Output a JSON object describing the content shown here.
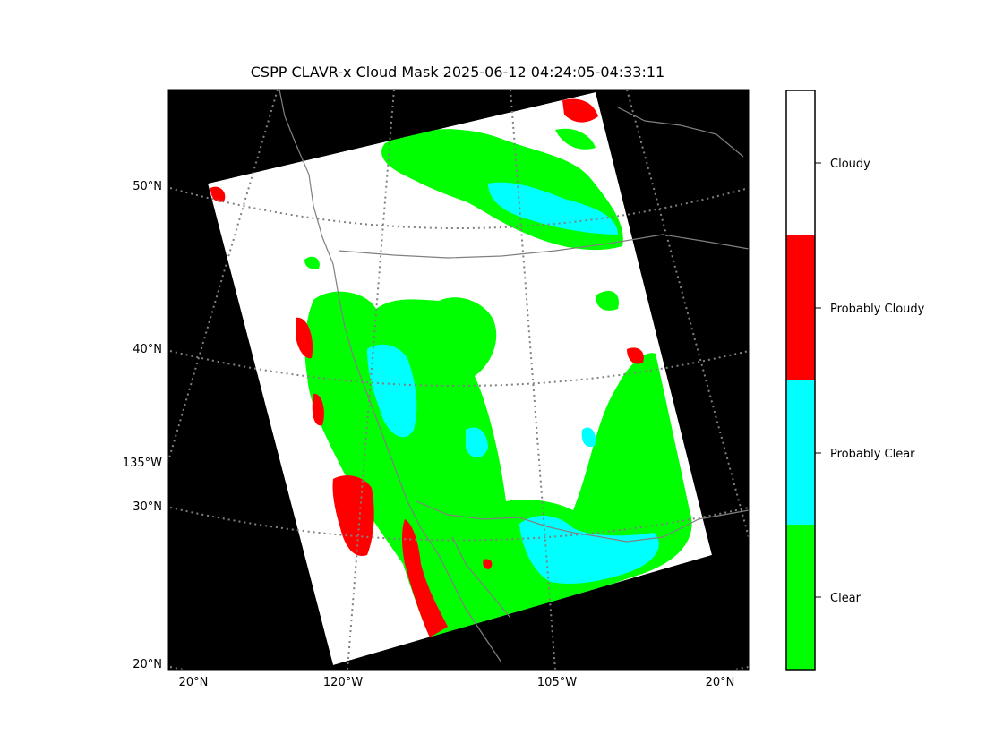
{
  "title": "CSPP CLAVR-x Cloud Mask 2025-06-12 04:24:05-04:33:11",
  "map": {
    "background_color": "#000000",
    "coastline_color": "#808080",
    "graticule_color": "#808080",
    "graticule_style": "dotted",
    "left_labels": [
      "50°N",
      "40°N",
      "135°W",
      "30°N",
      "20°N"
    ],
    "right_labels": [],
    "bottom_labels": [
      "20°N",
      "120°W",
      "105°W",
      "20°N"
    ]
  },
  "legend": {
    "type": "categorical colorbar",
    "placement": "right",
    "categories": [
      {
        "label": "Cloudy",
        "color": "#ffffff"
      },
      {
        "label": "Probably Cloudy",
        "color": "#ff0000"
      },
      {
        "label": "Probably Clear",
        "color": "#00ffff"
      },
      {
        "label": "Clear",
        "color": "#00ff00"
      }
    ]
  }
}
